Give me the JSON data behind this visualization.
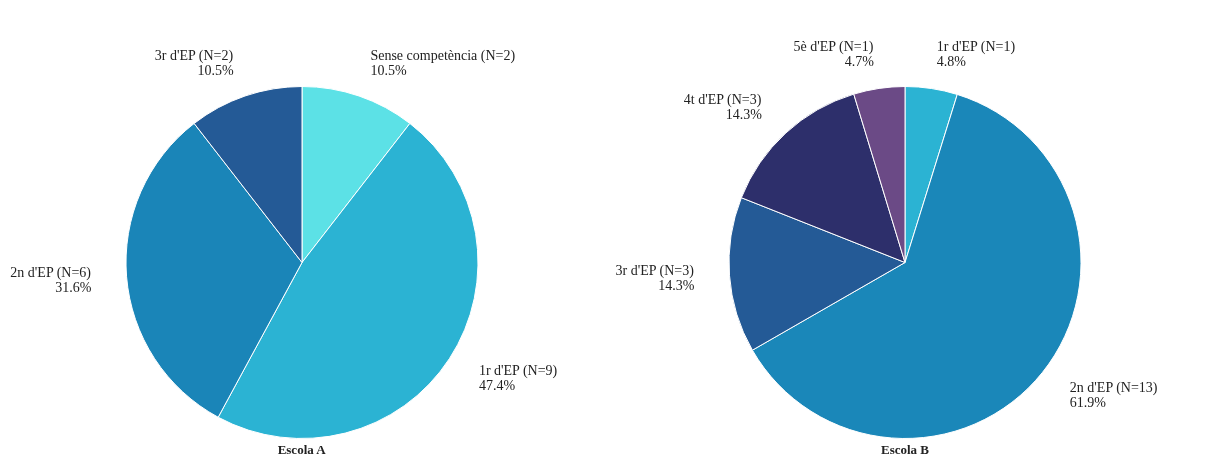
{
  "chart_data": [
    {
      "type": "pie",
      "title": "Escola A",
      "categories": [
        "Sense competència (N=2)",
        "1r d'EP (N=9)",
        "2n d'EP (N=6)",
        "3r d'EP (N=2)"
      ],
      "values": [
        10.5,
        47.4,
        31.6,
        10.5
      ],
      "value_labels": [
        "10.5%",
        "47.4%",
        "31.6%",
        "10.5%"
      ],
      "colors": [
        "#5ce1e6",
        "#2bb3d3",
        "#1a85b8",
        "#245a96"
      ]
    },
    {
      "type": "pie",
      "title": "Escola B",
      "categories": [
        "1r d'EP (N=1)",
        "2n d'EP (N=13)",
        "3r d'EP (N=3)",
        "4t d'EP (N=3)",
        "5è d'EP (N=1)"
      ],
      "values": [
        4.8,
        61.9,
        14.3,
        14.3,
        4.7
      ],
      "value_labels": [
        "4.8%",
        "61.9%",
        "14.3%",
        "14.3%",
        "4.7%"
      ],
      "colors": [
        "#2bb3d3",
        "#1a87b9",
        "#245a96",
        "#2d2f6b",
        "#6b4a86"
      ]
    }
  ]
}
